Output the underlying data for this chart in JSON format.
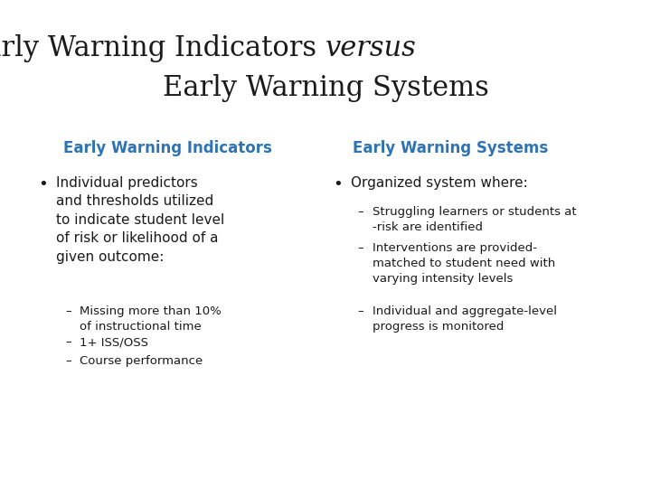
{
  "title_line1": "Early Warning Indicators ",
  "title_italic": "versus",
  "title_line2": "Early Warning Systems",
  "title_fontsize": 22,
  "title_color": "#1a1a1a",
  "header_color": "#2e74b5",
  "header_fontsize": 12,
  "body_fontsize": 11,
  "sub_fontsize": 9.5,
  "background_color": "#ffffff",
  "col1_header": "Early Warning Indicators",
  "col2_header": "Early Warning Systems",
  "col1_bullet": "Individual predictors\nand thresholds utilized\nto indicate student level\nof risk or likelihood of a\ngiven outcome:",
  "col1_sub1": "Missing more than 10%\nof instructional time",
  "col1_sub2": "1+ ISS/OSS",
  "col1_sub3": "Course performance",
  "col2_bullet": "Organized system where:",
  "col2_sub1": "Struggling learners or students at\n-risk are identified",
  "col2_sub2": "Interventions are provided-\nmatched to student need with\nvarying intensity levels",
  "col2_sub3": "Individual and aggregate-level\nprogress is monitored"
}
